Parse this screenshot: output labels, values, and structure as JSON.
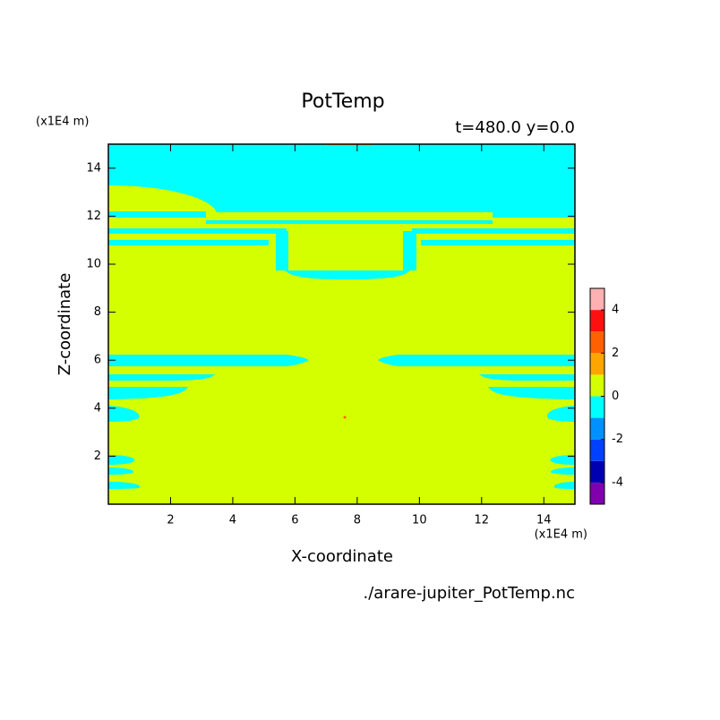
{
  "chart_data": {
    "type": "contour",
    "title": "PotTemp",
    "subtitle": "t=480.0 y=0.0",
    "xlabel": "X-coordinate",
    "ylabel": "Z-coordinate",
    "xunit": "(x1E4 m)",
    "yunit": "(x1E4 m)",
    "footer": "./arare-jupiter_PotTemp.nc",
    "xlim": [
      0,
      15
    ],
    "ylim": [
      0,
      15
    ],
    "xticks": [
      2,
      4,
      6,
      8,
      10,
      12,
      14
    ],
    "yticks": [
      2,
      4,
      6,
      8,
      10,
      12,
      14
    ],
    "levels": [
      -5,
      -4,
      -3,
      -2,
      -1,
      0,
      1,
      2,
      3,
      4,
      5
    ],
    "colors": [
      "#8000b0",
      "#0000b0",
      "#0040ff",
      "#0090ff",
      "#00ffff",
      "#d4ff00",
      "#ffa500",
      "#ff6000",
      "#ff1010",
      "#ffb0b0"
    ],
    "cbticks": [
      -4,
      -2,
      0,
      2,
      4
    ]
  }
}
